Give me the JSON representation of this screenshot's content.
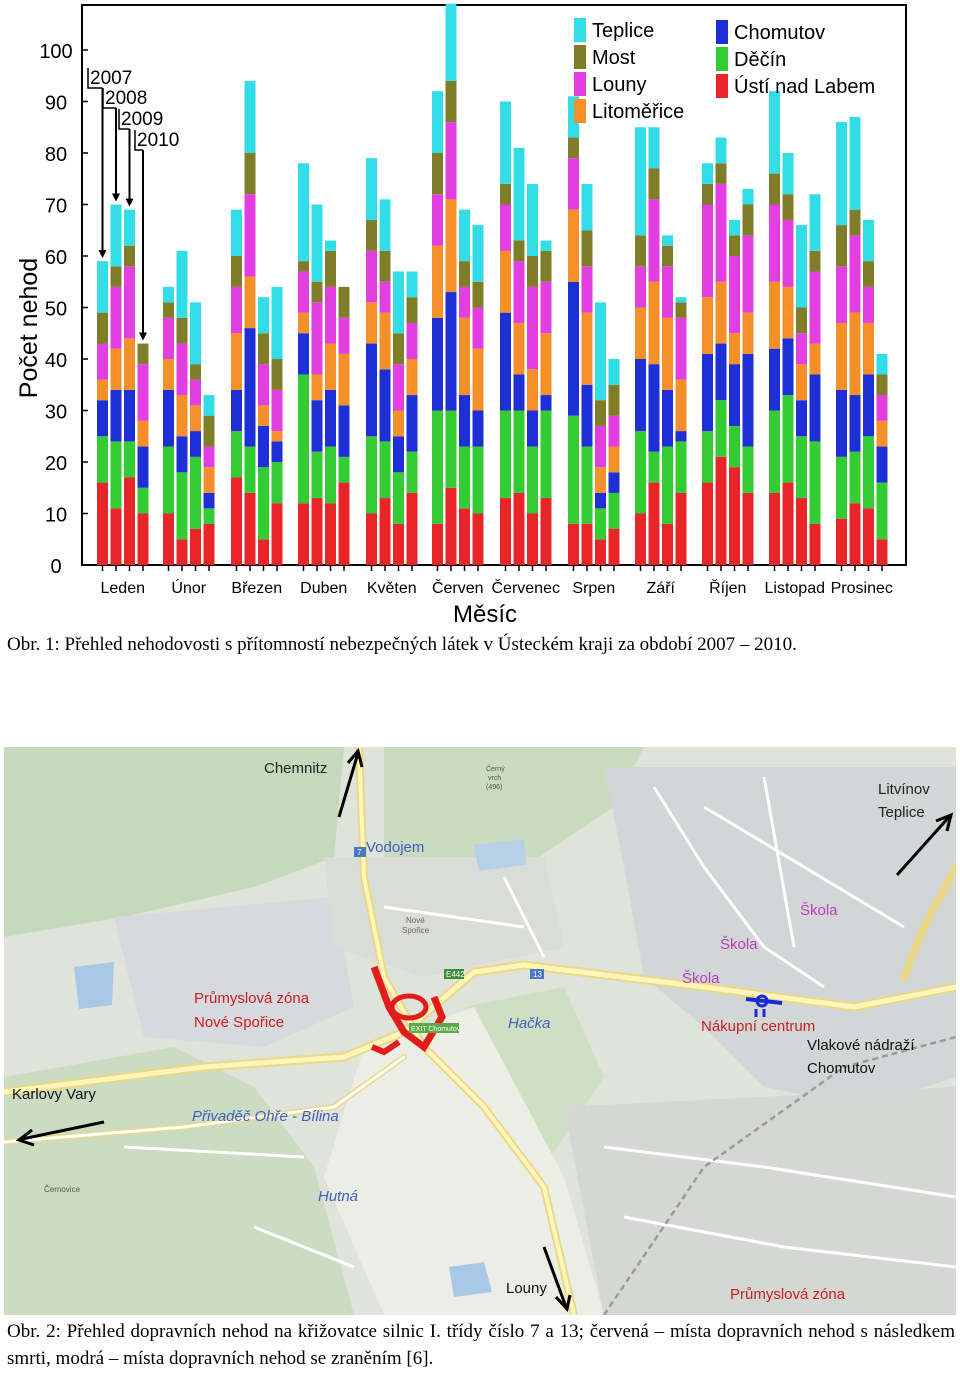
{
  "figure1": {
    "caption": "Obr. 1: Přehled nehodovosti s přítomností nebezpečných látek v Ústeckém kraji za období 2007 – 2010.",
    "chart_data": {
      "type": "bar",
      "stacked": true,
      "ylabel": "Počet nehod",
      "xlabel": "Měsíc",
      "ylim": [
        0,
        100
      ],
      "yticks": [
        0,
        10,
        20,
        30,
        40,
        50,
        60,
        70,
        80,
        90,
        100
      ],
      "grid": false,
      "legend_position": "top-right",
      "year_labels": [
        "2007",
        "2008",
        "2009",
        "2010"
      ],
      "categories": [
        "Leden",
        "Únor",
        "Březen",
        "Duben",
        "Květen",
        "Červen",
        "Červenec",
        "Srpen",
        "Září",
        "Říjen",
        "Listopad",
        "Prosinec"
      ],
      "series": [
        {
          "name": "Ústí nad Labem",
          "color": "#e8262a",
          "values": [
            [
              16,
              11,
              17,
              10
            ],
            [
              10,
              5,
              7,
              8
            ],
            [
              17,
              14,
              5,
              12
            ],
            [
              12,
              13,
              12,
              16
            ],
            [
              10,
              13,
              8,
              14
            ],
            [
              8,
              15,
              11,
              10
            ],
            [
              13,
              14,
              10,
              13
            ],
            [
              8,
              8,
              5,
              7
            ],
            [
              10,
              16,
              8,
              14
            ],
            [
              16,
              21,
              19,
              14
            ],
            [
              14,
              16,
              13,
              8
            ],
            [
              9,
              12,
              11,
              5
            ]
          ]
        },
        {
          "name": "Děčín",
          "color": "#33cc33",
          "values": [
            [
              9,
              13,
              7,
              5
            ],
            [
              13,
              13,
              14,
              3
            ],
            [
              9,
              9,
              14,
              8
            ],
            [
              25,
              9,
              11,
              5
            ],
            [
              15,
              11,
              10,
              8
            ],
            [
              22,
              15,
              12,
              13
            ],
            [
              17,
              16,
              13,
              17
            ],
            [
              21,
              15,
              6,
              7
            ],
            [
              16,
              6,
              15,
              10
            ],
            [
              10,
              11,
              8,
              9
            ],
            [
              16,
              17,
              12,
              16
            ],
            [
              12,
              10,
              14,
              11
            ]
          ]
        },
        {
          "name": "Chomutov",
          "color": "#1f2fd6",
          "values": [
            [
              7,
              10,
              10,
              8
            ],
            [
              11,
              7,
              5,
              3
            ],
            [
              8,
              23,
              8,
              4
            ],
            [
              8,
              10,
              11,
              10
            ],
            [
              18,
              14,
              7,
              11
            ],
            [
              18,
              23,
              10,
              7
            ],
            [
              19,
              7,
              7,
              3
            ],
            [
              26,
              12,
              3,
              4
            ],
            [
              14,
              17,
              11,
              2
            ],
            [
              15,
              11,
              12,
              18
            ],
            [
              12,
              11,
              7,
              13
            ],
            [
              13,
              11,
              12,
              7
            ]
          ]
        },
        {
          "name": "Litoměřice",
          "color": "#f4902a",
          "values": [
            [
              4,
              8,
              10,
              5
            ],
            [
              6,
              8,
              5,
              5
            ],
            [
              11,
              10,
              4,
              2
            ],
            [
              4,
              5,
              9,
              10
            ],
            [
              8,
              11,
              5,
              7
            ],
            [
              14,
              18,
              15,
              12
            ],
            [
              12,
              10,
              8,
              12
            ],
            [
              14,
              14,
              5,
              5
            ],
            [
              10,
              16,
              14,
              10
            ],
            [
              11,
              12,
              6,
              8
            ],
            [
              13,
              10,
              7,
              6
            ],
            [
              13,
              16,
              10,
              5
            ]
          ]
        },
        {
          "name": "Louny",
          "color": "#e33ee0",
          "values": [
            [
              7,
              12,
              14,
              11
            ],
            [
              8,
              10,
              5,
              4
            ],
            [
              9,
              16,
              8,
              8
            ],
            [
              8,
              14,
              11,
              7
            ],
            [
              10,
              6,
              9,
              7
            ],
            [
              10,
              15,
              6,
              8
            ],
            [
              9,
              12,
              16,
              10
            ],
            [
              10,
              9,
              8,
              6
            ],
            [
              8,
              16,
              10,
              12
            ],
            [
              18,
              19,
              15,
              15
            ],
            [
              15,
              13,
              6,
              14
            ],
            [
              11,
              15,
              7,
              5
            ]
          ]
        },
        {
          "name": "Most",
          "color": "#7f7d28",
          "values": [
            [
              6,
              4,
              4,
              4
            ],
            [
              3,
              5,
              3,
              6
            ],
            [
              6,
              8,
              6,
              6
            ],
            [
              2,
              4,
              7,
              6
            ],
            [
              6,
              6,
              6,
              5
            ],
            [
              8,
              8,
              5,
              5
            ],
            [
              4,
              4,
              6,
              6
            ],
            [
              4,
              7,
              5,
              6
            ],
            [
              6,
              6,
              4,
              3
            ],
            [
              4,
              4,
              4,
              6
            ],
            [
              6,
              5,
              5,
              4
            ],
            [
              8,
              5,
              5,
              4
            ]
          ]
        },
        {
          "name": "Teplice",
          "color": "#33dde8",
          "values": [
            [
              10,
              12,
              7,
              0
            ],
            [
              3,
              13,
              12,
              4
            ],
            [
              9,
              14,
              7,
              14
            ],
            [
              19,
              15,
              2,
              0
            ],
            [
              12,
              10,
              12,
              5
            ],
            [
              12,
              15,
              10,
              11
            ],
            [
              16,
              18,
              14,
              2
            ],
            [
              8,
              9,
              19,
              5
            ],
            [
              21,
              8,
              2,
              1
            ],
            [
              4,
              5,
              3,
              3
            ],
            [
              16,
              8,
              16,
              11
            ],
            [
              20,
              18,
              8,
              4
            ]
          ]
        }
      ]
    }
  },
  "figure2": {
    "caption": "Obr. 2: Přehled dopravních nehod na křižovatce silnic I. třídy číslo 7 a 13; červená – místa dopravních nehod s následkem smrti, modrá – místa dopravních nehod se zraněním [6].",
    "labels": {
      "chemnitz": "Chemnitz",
      "hill_name": "Černý",
      "hill_name2": "vrch",
      "hill_height": "(496)",
      "litvinov": "Litvínov",
      "teplice": "Teplice",
      "vodojem": "Vodojem",
      "nove_sporice_small": "Nové",
      "nove_sporice_small2": "Spořice",
      "skola1": "Škola",
      "skola2": "Škola",
      "skola3": "Škola",
      "industrial_zone_1": "Průmyslová zóna",
      "industrial_zone_1b": "Nové Spořice",
      "hacka": "Hačka",
      "shopping_center": "Nákupní centrum",
      "train_station": "Vlakové nádraží",
      "train_station2": "Chomutov",
      "karlovy_vary": "Karlovy Vary",
      "privadec": "Přivaděč Ohře - Bílina",
      "hutna": "Hutná",
      "cernovice": "Černovice",
      "louny": "Louny",
      "industrial_zone_2": "Průmyslová zóna",
      "exit_sign": "EXIT Chomutov",
      "road_13": "13",
      "road_e442": "E442",
      "road_7": "7"
    }
  }
}
